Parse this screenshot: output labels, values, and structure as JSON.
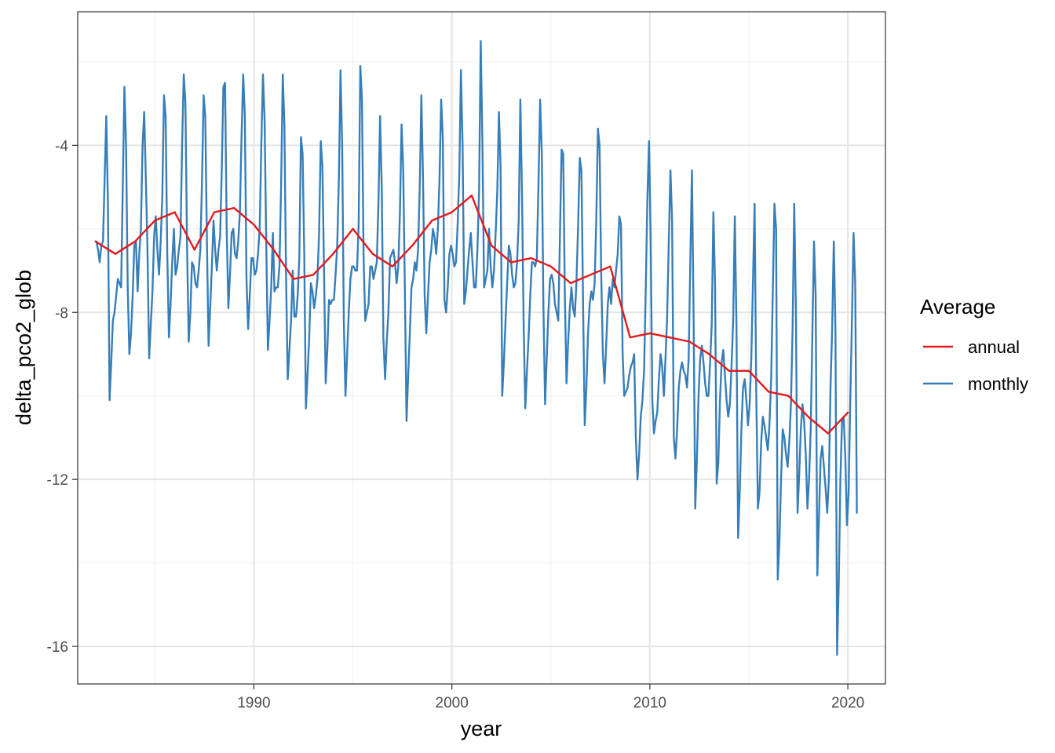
{
  "chart_data": {
    "type": "line",
    "title": "",
    "xlabel": "year",
    "ylabel": "delta_pco2_glob",
    "xlim": [
      1981.1,
      2021.9
    ],
    "ylim": [
      -16.9,
      -0.8
    ],
    "x_ticks": [
      1990,
      2000,
      2010,
      2020
    ],
    "x_tick_labels": [
      "1990",
      "2000",
      "2010",
      "2020"
    ],
    "y_ticks": [
      -4,
      -8,
      -12,
      -16
    ],
    "y_tick_labels": [
      "-4",
      "-8",
      "-12",
      "-16"
    ],
    "x_minor": [
      1985,
      1995,
      2005,
      2015
    ],
    "y_minor": [
      -2,
      -6,
      -10,
      -14
    ],
    "grid": true,
    "legend": {
      "title": "Average",
      "position": "right",
      "entries": [
        {
          "label": "annual",
          "color": "#E41A1C"
        },
        {
          "label": "monthly",
          "color": "#377EB8"
        }
      ]
    },
    "series": [
      {
        "name": "monthly",
        "color": "#377EB8",
        "x_start": 1982.0417,
        "x_step": 0.0833333,
        "values": [
          -6.3,
          -6.5,
          -6.8,
          -6.4,
          -6.3,
          -4.8,
          -3.3,
          -5.4,
          -10.1,
          -9.2,
          -8.2,
          -8.0,
          -7.6,
          -7.2,
          -7.3,
          -7.4,
          -5.0,
          -2.6,
          -4.0,
          -7.4,
          -9.0,
          -8.5,
          -7.6,
          -6.4,
          -6.3,
          -7.5,
          -6.6,
          -6.0,
          -4.0,
          -3.2,
          -4.8,
          -6.5,
          -9.1,
          -8.3,
          -7.5,
          -6.2,
          -5.7,
          -6.5,
          -7.1,
          -6.3,
          -5.2,
          -2.8,
          -3.3,
          -6.6,
          -8.6,
          -7.8,
          -6.8,
          -6.0,
          -7.1,
          -6.9,
          -6.5,
          -6.2,
          -4.0,
          -2.3,
          -3.0,
          -6.4,
          -8.7,
          -8.0,
          -6.8,
          -6.9,
          -7.3,
          -7.4,
          -7.0,
          -6.5,
          -4.9,
          -2.8,
          -3.3,
          -6.3,
          -8.8,
          -7.9,
          -6.9,
          -5.8,
          -6.5,
          -7.0,
          -6.5,
          -6.2,
          -4.6,
          -2.6,
          -2.5,
          -6.0,
          -7.9,
          -7.1,
          -6.1,
          -6.0,
          -6.6,
          -6.7,
          -6.3,
          -5.6,
          -3.8,
          -2.3,
          -3.3,
          -7.2,
          -8.4,
          -7.6,
          -6.7,
          -6.7,
          -7.1,
          -7.0,
          -6.6,
          -6.0,
          -4.0,
          -2.3,
          -3.4,
          -6.4,
          -8.9,
          -8.2,
          -7.4,
          -6.1,
          -7.5,
          -7.4,
          -7.4,
          -6.9,
          -5.0,
          -2.3,
          -3.5,
          -7.1,
          -9.6,
          -8.9,
          -8.2,
          -7.0,
          -8.1,
          -8.1,
          -7.6,
          -6.7,
          -3.8,
          -4.2,
          -6.6,
          -10.3,
          -9.5,
          -8.6,
          -7.3,
          -7.5,
          -7.9,
          -7.6,
          -7.2,
          -6.1,
          -3.9,
          -4.5,
          -7.0,
          -9.7,
          -8.9,
          -7.7,
          -7.8,
          -7.7,
          -7.7,
          -7.1,
          -6.4,
          -4.8,
          -2.2,
          -4.0,
          -8.2,
          -10.0,
          -9.0,
          -8.0,
          -7.2,
          -6.9,
          -6.9,
          -7.0,
          -7.0,
          -5.9,
          -2.1,
          -2.9,
          -6.7,
          -8.2,
          -8.0,
          -7.8,
          -6.9,
          -6.9,
          -7.2,
          -7.0,
          -6.8,
          -5.4,
          -3.3,
          -5.0,
          -8.6,
          -9.6,
          -8.7,
          -8.0,
          -6.7,
          -6.6,
          -6.5,
          -6.8,
          -7.3,
          -6.9,
          -5.6,
          -3.5,
          -4.6,
          -7.5,
          -10.6,
          -9.5,
          -8.5,
          -7.4,
          -7.2,
          -6.8,
          -7.0,
          -6.5,
          -5.0,
          -2.8,
          -4.8,
          -7.6,
          -8.5,
          -7.6,
          -6.8,
          -6.5,
          -6.0,
          -6.2,
          -6.6,
          -6.0,
          -4.8,
          -2.9,
          -3.8,
          -7.7,
          -8.0,
          -7.4,
          -6.6,
          -6.4,
          -6.6,
          -6.9,
          -6.8,
          -5.9,
          -4.7,
          -2.2,
          -4.0,
          -7.8,
          -7.5,
          -7.0,
          -6.5,
          -6.1,
          -6.8,
          -7.4,
          -7.4,
          -6.5,
          -5.1,
          -1.5,
          -4.0,
          -7.4,
          -7.2,
          -7.0,
          -6.0,
          -6.9,
          -7.4,
          -7.0,
          -6.1,
          -5.1,
          -3.2,
          -4.5,
          -10.0,
          -9.2,
          -8.2,
          -7.3,
          -6.4,
          -6.6,
          -7.1,
          -7.4,
          -7.3,
          -6.8,
          -5.8,
          -2.9,
          -5.2,
          -8.3,
          -10.3,
          -9.4,
          -8.6,
          -7.6,
          -6.8,
          -6.8,
          -6.9,
          -6.7,
          -4.9,
          -2.9,
          -4.2,
          -7.9,
          -10.2,
          -9.1,
          -8.0,
          -7.2,
          -7.1,
          -7.3,
          -7.8,
          -8.0,
          -8.2,
          -6.2,
          -4.1,
          -4.2,
          -7.6,
          -9.7,
          -8.7,
          -7.9,
          -7.4,
          -7.9,
          -8.1,
          -7.3,
          -5.9,
          -4.3,
          -4.6,
          -7.8,
          -10.7,
          -9.8,
          -8.5,
          -7.8,
          -7.5,
          -7.7,
          -7.3,
          -5.8,
          -3.6,
          -4.0,
          -7.1,
          -9.0,
          -9.7,
          -8.8,
          -7.8,
          -7.4,
          -7.8,
          -7.2,
          -7.4,
          -7.0,
          -6.6,
          -5.7,
          -5.9,
          -9.0,
          -10.0,
          -9.9,
          -9.8,
          -9.5,
          -9.3,
          -9.2,
          -9.0,
          -11.0,
          -12.0,
          -11.4,
          -10.5,
          -10.1,
          -9.4,
          -7.5,
          -5.3,
          -3.9,
          -6.2,
          -10.1,
          -10.9,
          -10.6,
          -10.4,
          -9.6,
          -9.0,
          -9.3,
          -10.0,
          -9.1,
          -8.1,
          -6.3,
          -4.6,
          -5.8,
          -11.0,
          -11.5,
          -10.8,
          -9.8,
          -9.4,
          -9.2,
          -9.4,
          -9.5,
          -9.8,
          -9.1,
          -6.8,
          -4.6,
          -8.1,
          -12.7,
          -11.5,
          -10.0,
          -9.1,
          -8.8,
          -9.2,
          -9.7,
          -10.0,
          -10.0,
          -9.2,
          -8.3,
          -5.6,
          -7.3,
          -12.1,
          -11.6,
          -10.1,
          -9.2,
          -8.9,
          -9.5,
          -10.1,
          -10.5,
          -10.2,
          -9.3,
          -8.2,
          -5.7,
          -8.3,
          -13.4,
          -12.3,
          -10.8,
          -9.8,
          -9.6,
          -10.1,
          -10.7,
          -10.2,
          -9.1,
          -7.3,
          -5.4,
          -9.9,
          -12.7,
          -12.3,
          -11.1,
          -10.5,
          -10.7,
          -11.0,
          -11.3,
          -10.7,
          -9.6,
          -7.5,
          -5.4,
          -6.0,
          -14.4,
          -13.5,
          -12.0,
          -10.8,
          -11.0,
          -11.4,
          -11.7,
          -11.1,
          -10.2,
          -8.4,
          -5.4,
          -7.9,
          -12.8,
          -11.9,
          -10.8,
          -10.2,
          -10.6,
          -11.4,
          -12.7,
          -12.0,
          -10.8,
          -8.5,
          -6.3,
          -7.6,
          -14.3,
          -12.9,
          -11.5,
          -11.2,
          -11.7,
          -12.2,
          -12.8,
          -12.0,
          -9.8,
          -8.4,
          -6.3,
          -8.4,
          -16.2,
          -14.5,
          -12.0,
          -10.6,
          -10.5,
          -11.5,
          -13.1,
          -12.3,
          -10.1,
          -8.2,
          -6.1,
          -7.3,
          -12.8
        ]
      },
      {
        "name": "annual",
        "color": "#E41A1C",
        "x": [
          1982,
          1983,
          1984,
          1985,
          1986,
          1987,
          1988,
          1989,
          1990,
          1991,
          1992,
          1993,
          1994,
          1995,
          1996,
          1997,
          1998,
          1999,
          2000,
          2001,
          2002,
          2003,
          2004,
          2005,
          2006,
          2007,
          2008,
          2009,
          2010,
          2011,
          2012,
          2013,
          2014,
          2015,
          2016,
          2017,
          2018,
          2019,
          2020
        ],
        "values": [
          -6.3,
          -6.6,
          -6.3,
          -5.8,
          -5.6,
          -6.5,
          -5.6,
          -5.5,
          -5.9,
          -6.5,
          -7.2,
          -7.1,
          -6.6,
          -6.0,
          -6.6,
          -6.9,
          -6.4,
          -5.8,
          -5.6,
          -5.2,
          -6.4,
          -6.8,
          -6.7,
          -6.9,
          -7.3,
          -7.1,
          -6.9,
          -8.6,
          -8.5,
          -8.6,
          -8.7,
          -9.0,
          -9.4,
          -9.4,
          -9.9,
          -10.0,
          -10.5,
          -10.9,
          -10.4
        ]
      }
    ]
  }
}
